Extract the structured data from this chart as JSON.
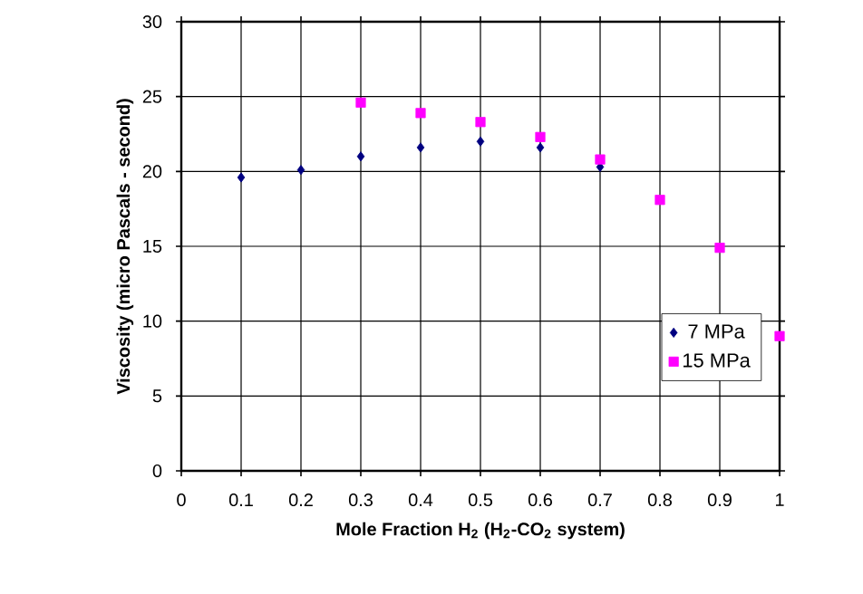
{
  "chart_data": {
    "type": "scatter",
    "xlabel": "Mole Fraction H$_{2}$ (H$_{2}$-CO$_{2}$ system)",
    "ylabel": "Viscosity (micro Pascals - second)",
    "xlim": [
      0,
      1
    ],
    "ylim": [
      0,
      30
    ],
    "xticks": [
      0,
      0.1,
      0.2,
      0.3,
      0.4,
      0.5,
      0.6,
      0.7,
      0.8,
      0.9,
      1
    ],
    "yticks": [
      0,
      5,
      10,
      15,
      20,
      25,
      30
    ],
    "grid": true,
    "legend": "bottom right",
    "series": [
      {
        "name": "7 MPa",
        "color": "#000080",
        "marker": "diamond",
        "x": [
          0.1,
          0.2,
          0.3,
          0.4,
          0.5,
          0.6,
          0.7
        ],
        "values": [
          19.6,
          20.1,
          21.0,
          21.6,
          22.0,
          21.6,
          20.3
        ]
      },
      {
        "name": "15 MPa",
        "color": "#ff00ff",
        "marker": "square",
        "x": [
          0.3,
          0.4,
          0.5,
          0.6,
          0.7,
          0.8,
          0.9,
          1
        ],
        "values": [
          24.6,
          23.9,
          23.3,
          22.3,
          20.8,
          18.1,
          14.9,
          9.0
        ]
      }
    ]
  }
}
